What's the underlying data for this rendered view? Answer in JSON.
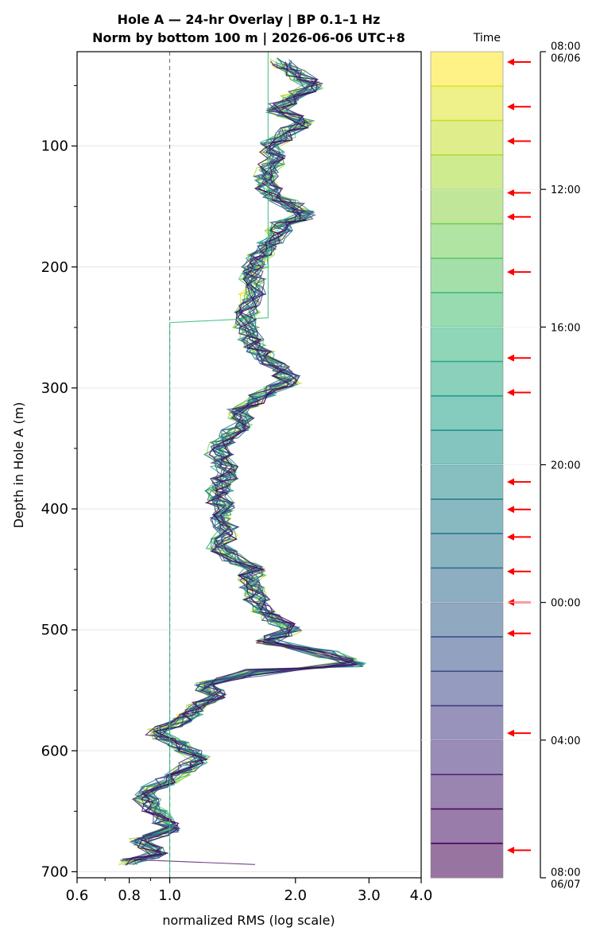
{
  "chart_data": {
    "type": "line",
    "title": "Hole A — 24-hr Overlay  |  BP 0.1–1 Hz",
    "subtitle": "Norm by bottom 100 m  |  2026-06-06 UTC+8",
    "xlabel": "normalized RMS  (log scale)",
    "ylabel": "Depth in Hole A (m)",
    "x_scale": "log",
    "xlim": [
      0.6,
      4.0
    ],
    "ylim": [
      705,
      22
    ],
    "x_ticks": [
      "0.6",
      "0.8",
      "1.0",
      "2.0",
      "3.0",
      "4.0"
    ],
    "y_ticks": [
      "100",
      "200",
      "300",
      "400",
      "500",
      "600",
      "700"
    ],
    "grid": true,
    "reference_line": {
      "x": 1.0,
      "style": "dashed"
    },
    "profile": {
      "depth": [
        30,
        40,
        50,
        60,
        70,
        80,
        90,
        100,
        110,
        120,
        130,
        140,
        150,
        158,
        165,
        175,
        185,
        195,
        205,
        215,
        230,
        245,
        255,
        265,
        275,
        285,
        295,
        302,
        310,
        320,
        330,
        340,
        350,
        360,
        370,
        380,
        390,
        400,
        410,
        420,
        430,
        440,
        450,
        460,
        470,
        480,
        490,
        500,
        510,
        520,
        528,
        535,
        545,
        555,
        565,
        575,
        585,
        595,
        605,
        615,
        625,
        635,
        645,
        655,
        665,
        675,
        685,
        692
      ],
      "rms": [
        1.85,
        2.0,
        2.2,
        1.95,
        1.8,
        2.1,
        1.9,
        1.75,
        1.8,
        1.72,
        1.7,
        1.75,
        2.0,
        2.1,
        1.85,
        1.8,
        1.7,
        1.62,
        1.58,
        1.6,
        1.55,
        1.52,
        1.55,
        1.6,
        1.7,
        1.85,
        1.95,
        1.75,
        1.6,
        1.45,
        1.5,
        1.38,
        1.3,
        1.33,
        1.37,
        1.34,
        1.3,
        1.35,
        1.33,
        1.38,
        1.3,
        1.4,
        1.6,
        1.55,
        1.6,
        1.65,
        1.75,
        1.95,
        1.7,
        2.4,
        2.8,
        1.6,
        1.2,
        1.3,
        1.15,
        1.08,
        0.92,
        1.05,
        1.18,
        1.1,
        0.98,
        0.87,
        0.9,
        0.96,
        1.0,
        0.85,
        0.95,
        0.8
      ]
    },
    "series_count": 24,
    "time_range": {
      "start": "08:00\n06/06",
      "end": "08:00\n06/07"
    },
    "time_ticks": [
      "08:00\n06/06",
      "12:00",
      "16:00",
      "20:00",
      "00:00",
      "04:00",
      "08:00\n06/07"
    ],
    "time_label": "Time",
    "colormap": "viridis",
    "marked_hours": [
      0.3,
      1.6,
      2.6,
      4.1,
      4.8,
      6.4,
      8.9,
      9.9,
      12.5,
      13.3,
      14.1,
      15.1,
      16.0,
      16.9,
      19.8,
      23.2
    ]
  },
  "colors": {
    "arrow": "#ff0000",
    "grid": "#e6e6e6",
    "axis": "#000000"
  }
}
